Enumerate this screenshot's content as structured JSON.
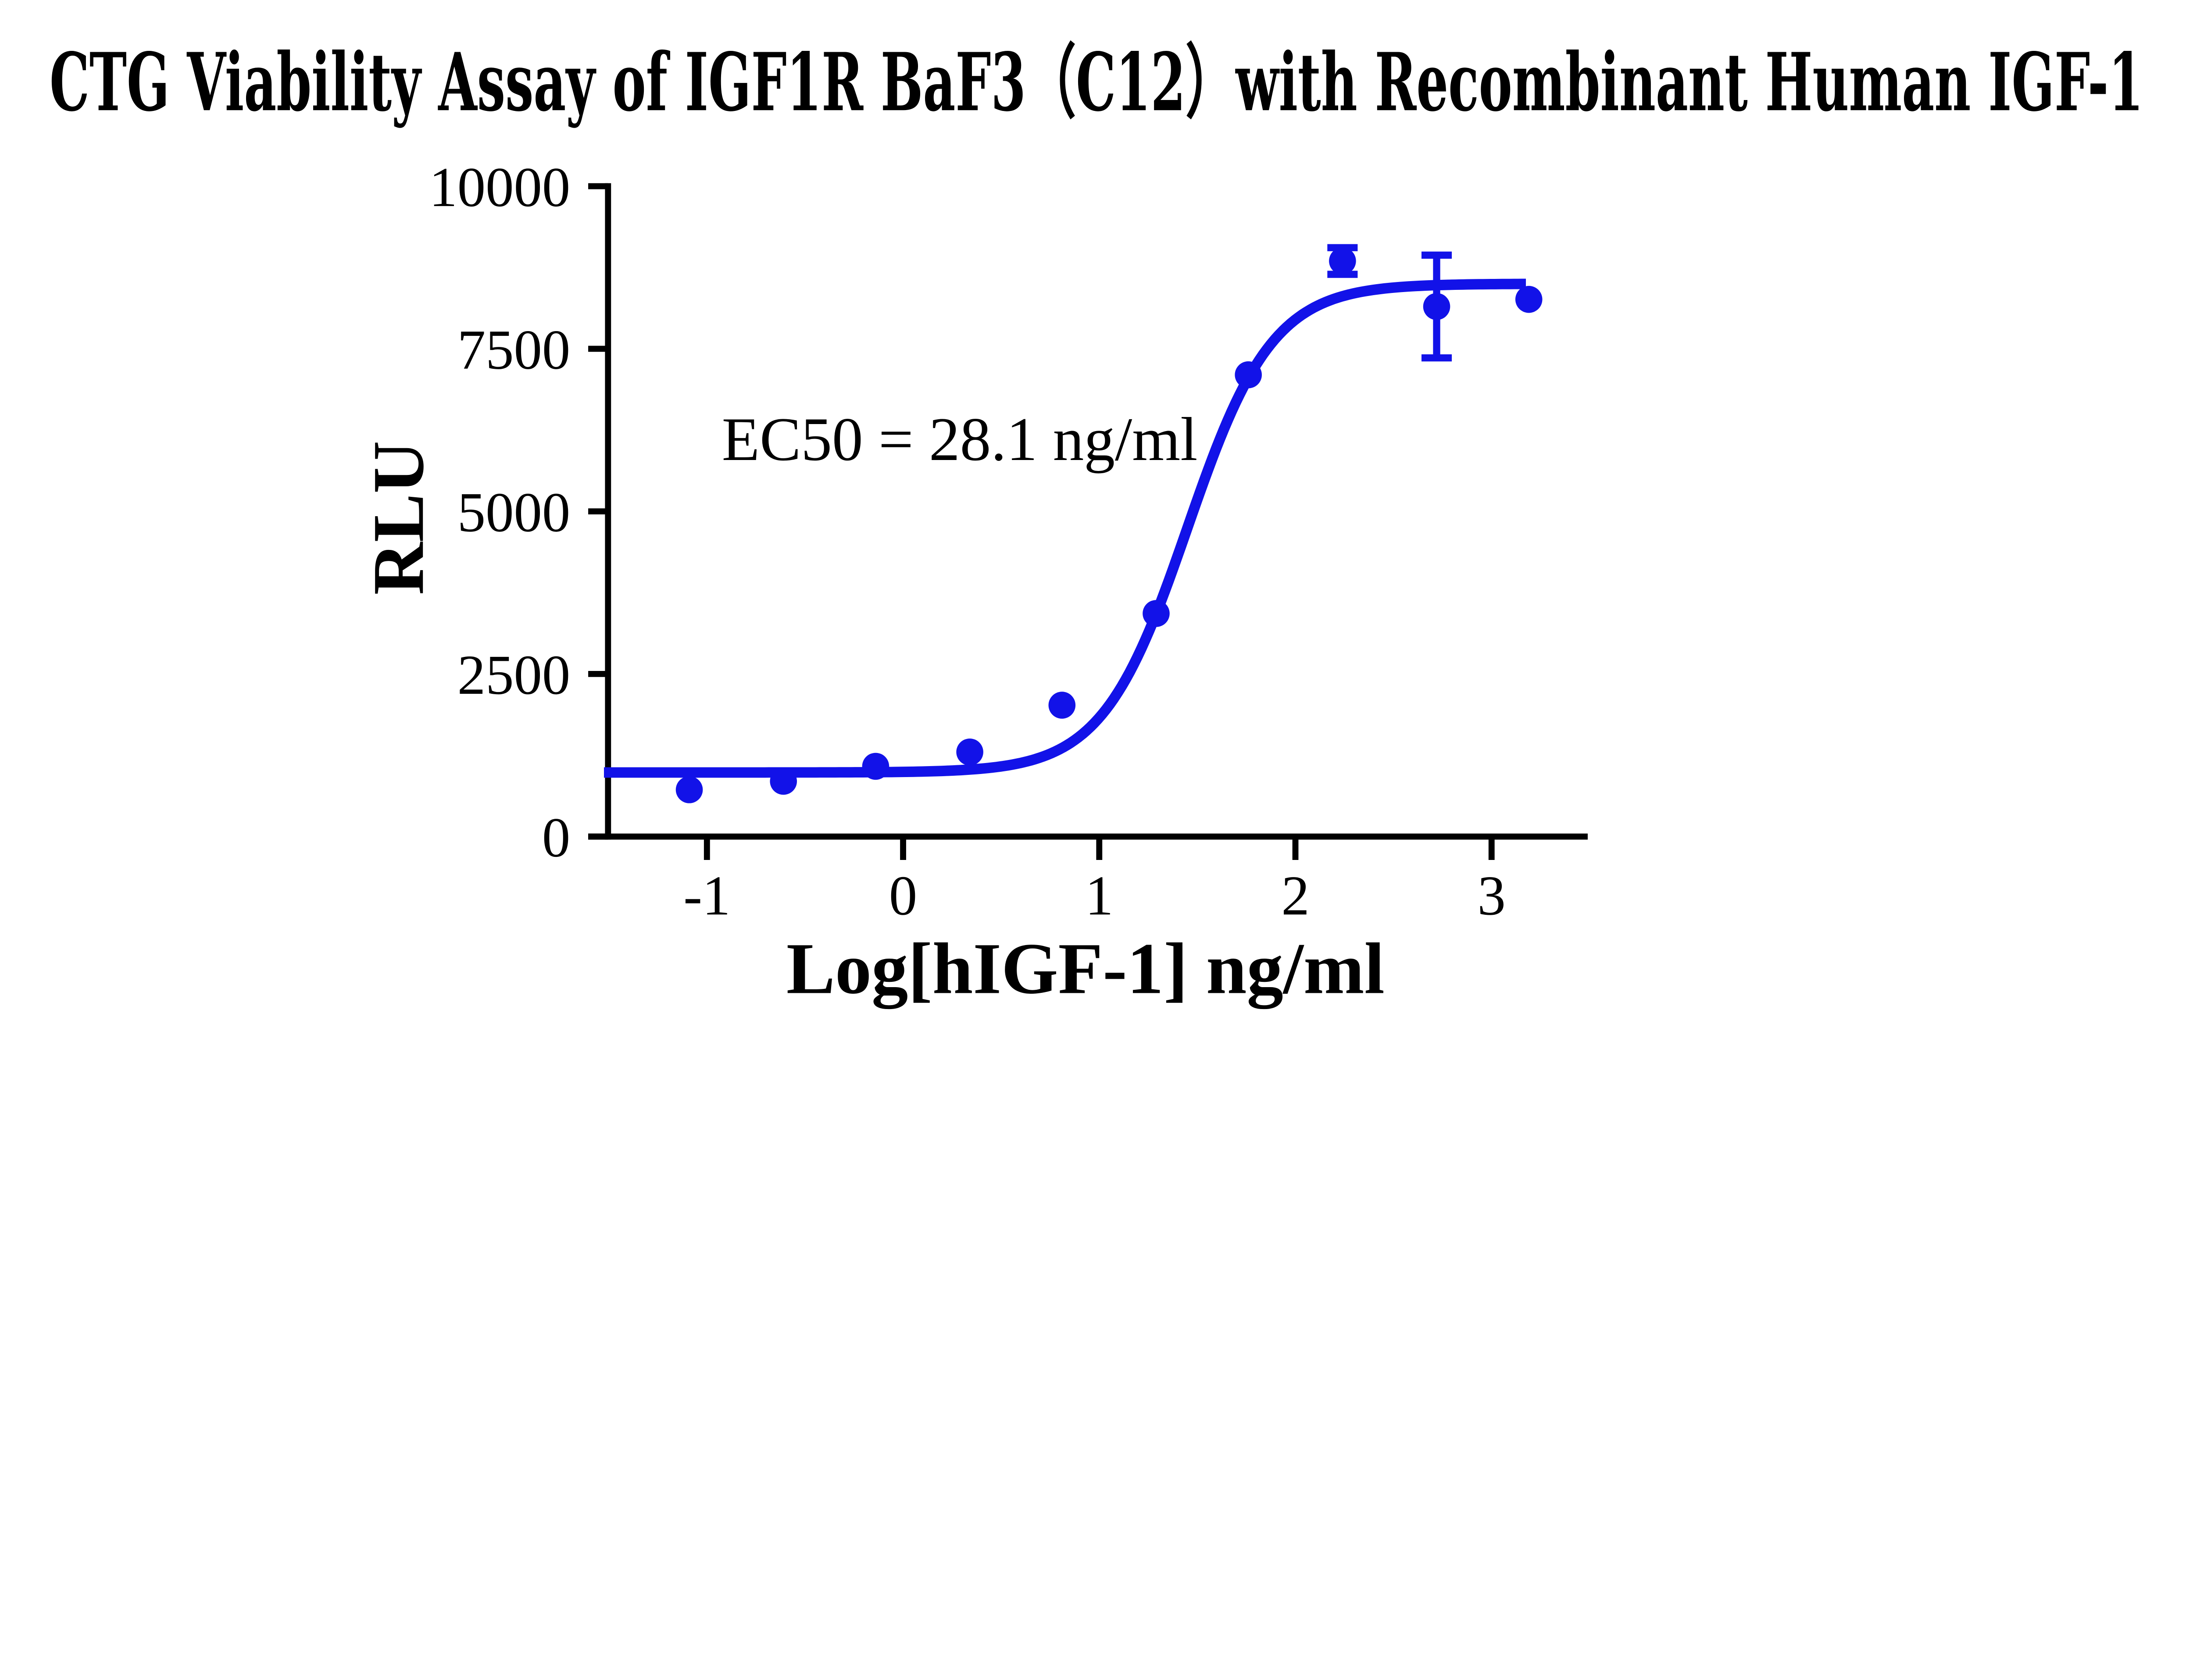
{
  "chart_data": {
    "type": "scatter",
    "title": "CTG Viability Assay of IGF1R BaF3（C12）with Recombinant Human IGF-1",
    "xlabel": "Log[hIGF-1] ng/ml",
    "ylabel": "RLU",
    "annotation": "EC50 = 28.1 ng/ml",
    "ec50_ng_ml": 28.1,
    "x_ticks": [
      -1,
      0,
      1,
      2,
      3
    ],
    "y_ticks": [
      0,
      2500,
      5000,
      7500,
      10000
    ],
    "xlim": [
      -1.6,
      3.5
    ],
    "ylim": [
      0,
      10000
    ],
    "grid": false,
    "legend": "none",
    "series_color": "#1212e8",
    "axis_color": "#000000",
    "points": [
      {
        "x": -1.09,
        "y": 720,
        "err": null
      },
      {
        "x": -0.61,
        "y": 850,
        "err": null
      },
      {
        "x": -0.14,
        "y": 1080,
        "err": null
      },
      {
        "x": 0.34,
        "y": 1300,
        "err": null
      },
      {
        "x": 0.81,
        "y": 2020,
        "err": null
      },
      {
        "x": 1.29,
        "y": 3430,
        "err": null
      },
      {
        "x": 1.76,
        "y": 7100,
        "err": null
      },
      {
        "x": 2.24,
        "y": 8850,
        "err": 205
      },
      {
        "x": 2.72,
        "y": 8150,
        "err": 790
      },
      {
        "x": 3.19,
        "y": 8260,
        "err": null
      }
    ],
    "fit_curve": {
      "model": "4-parameter logistic",
      "bottom": 985,
      "top": 8500,
      "logEC50": 1.449,
      "hill": 2.0,
      "x_start": -1.525,
      "x_end": 3.19
    }
  }
}
